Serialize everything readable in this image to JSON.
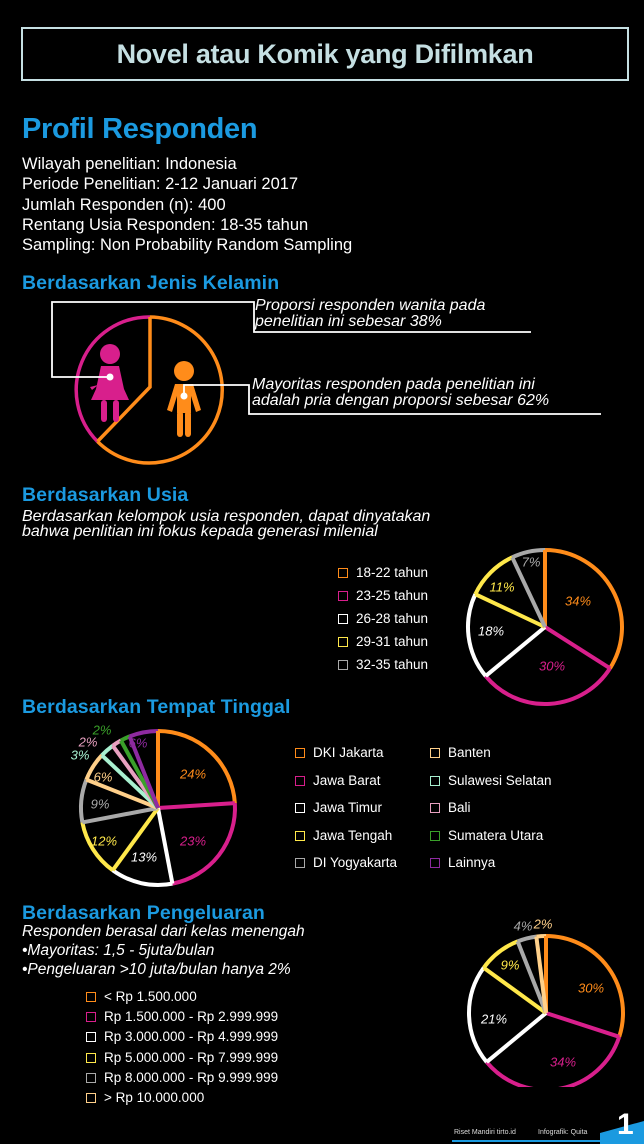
{
  "header": {
    "title": "Novel atau Komik yang Difilmkan"
  },
  "profile": {
    "title": "Profil Responden",
    "lines": [
      "Wilayah penelitian: Indonesia",
      "Periode Penelitian: 2-12 Januari 2017",
      "Jumlah Responden (n): 400",
      "Rentang Usia Responden: 18-35 tahun",
      "Sampling: Non Probability Random Sampling"
    ]
  },
  "gender": {
    "title": "Berdasarkan Jenis Kelamin",
    "female_note": [
      "Proporsi responden wanita pada",
      "penelitian ini sebesar 38%"
    ],
    "male_note": [
      "Mayoritas responden pada penelitian ini",
      "adalah pria dengan proporsi sebesar 62%"
    ],
    "female_icon": "female-person-icon",
    "male_icon": "male-person-icon"
  },
  "age": {
    "title": "Berdasarkan Usia",
    "subtitle": [
      "Berdasarkan kelompok usia responden, dapat dinyatakan",
      "bahwa penlitian ini fokus kepada generasi milenial"
    ]
  },
  "residence": {
    "title": "Berdasarkan Tempat Tinggal"
  },
  "spending": {
    "title": "Berdasarkan Pengeluaran",
    "notes": [
      "Responden berasal dari kelas menengah",
      "•Mayoritas: 1,5 - 5juta/bulan",
      "•Pengeluaran >10 juta/bulan hanya 2%"
    ]
  },
  "footer": {
    "source": "Riset Mandiri tirto.id",
    "credit": "Infografik: Quita",
    "page_number": "1"
  },
  "colors": {
    "accent_blue": "#1b9ae0",
    "title_text": "#c5dfe2",
    "orange": "#ff8c1a",
    "magenta": "#d81f8c",
    "white": "#ffffff",
    "yellow": "#ffe84a",
    "gray": "#a9a9a9",
    "peach": "#ffd08a",
    "mint": "#a8f0d0",
    "pink": "#e8a0c0",
    "green": "#3aa02a",
    "purple": "#8e2aa0"
  },
  "chart_data": [
    {
      "type": "pie",
      "title": "Berdasarkan Jenis Kelamin",
      "categories": [
        "Wanita",
        "Pria"
      ],
      "values": [
        38,
        62
      ],
      "colors": [
        "#d81f8c",
        "#ff8c1a"
      ],
      "legend_position": "annotations right"
    },
    {
      "type": "pie",
      "title": "Berdasarkan Usia",
      "categories": [
        "18-22 tahun",
        "23-25 tahun",
        "26-28 tahun",
        "29-31 tahun",
        "32-35 tahun"
      ],
      "values": [
        34,
        30,
        18,
        11,
        7
      ],
      "labels": [
        "34%",
        "30%",
        "18%",
        "11%",
        "7%"
      ],
      "colors": [
        "#ff8c1a",
        "#d81f8c",
        "#ffffff",
        "#ffe84a",
        "#a9a9a9"
      ],
      "legend_position": "left"
    },
    {
      "type": "pie",
      "title": "Berdasarkan Tempat Tinggal",
      "categories": [
        "DKI Jakarta",
        "Jawa Barat",
        "Jawa Timur",
        "Jawa Tengah",
        "DI Yogyakarta",
        "Banten",
        "Sulawesi Selatan",
        "Bali",
        "Sumatera Utara",
        "Lainnya"
      ],
      "values": [
        24,
        23,
        13,
        12,
        9,
        6,
        3,
        2,
        2,
        6
      ],
      "labels": [
        "24%",
        "23%",
        "13%",
        "12%",
        "9%",
        "6%",
        "3%",
        "2%",
        "2%",
        "6%"
      ],
      "colors": [
        "#ff8c1a",
        "#d81f8c",
        "#ffffff",
        "#ffe84a",
        "#a9a9a9",
        "#ffd08a",
        "#a8f0d0",
        "#e8a0c0",
        "#3aa02a",
        "#8e2aa0"
      ],
      "legend_position": "right (two columns)"
    },
    {
      "type": "pie",
      "title": "Berdasarkan Pengeluaran",
      "categories": [
        "< Rp 1.500.000",
        "Rp 1.500.000 - Rp 2.999.999",
        "Rp 3.000.000 - Rp 4.999.999",
        "Rp 5.000.000 - Rp 7.999.999",
        "Rp 8.000.000 - Rp 9.999.999",
        "> Rp 10.000.000"
      ],
      "values": [
        30,
        34,
        21,
        9,
        4,
        2
      ],
      "labels": [
        "30%",
        "34%",
        "21%",
        "9%",
        "4%",
        "2%"
      ],
      "colors": [
        "#ff8c1a",
        "#d81f8c",
        "#ffffff",
        "#ffe84a",
        "#a9a9a9",
        "#ffd08a"
      ],
      "legend_position": "left"
    }
  ]
}
